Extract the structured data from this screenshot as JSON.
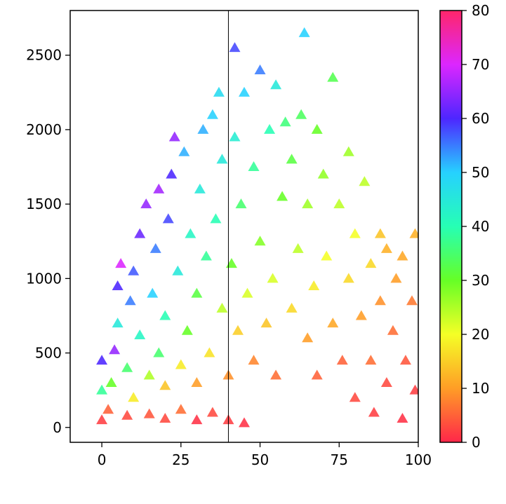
{
  "chart_data": {
    "type": "scatter",
    "marker": "triangle",
    "title": "",
    "xlabel": "",
    "ylabel": "",
    "xlim": [
      -10,
      100
    ],
    "ylim": [
      -100,
      2800
    ],
    "x_ticks": [
      0,
      25,
      50,
      75,
      100
    ],
    "x_tick_labels": [
      "0",
      "25",
      "50",
      "75",
      "100"
    ],
    "y_ticks": [
      0,
      500,
      1000,
      1500,
      2000,
      2500
    ],
    "y_tick_labels": [
      "0",
      "500",
      "1000",
      "1500",
      "2000",
      "2500"
    ],
    "vertical_line_x": 40,
    "colorbar": {
      "colormap": "gist_rainbow",
      "range": [
        0,
        80
      ],
      "ticks": [
        0,
        10,
        20,
        30,
        40,
        50,
        60,
        70,
        80
      ],
      "tick_labels": [
        "0",
        "10",
        "20",
        "30",
        "40",
        "50",
        "60",
        "70",
        "80"
      ]
    },
    "points": [
      {
        "x": 0,
        "y": 50,
        "c": 2
      },
      {
        "x": 0,
        "y": 250,
        "c": 38
      },
      {
        "x": 0,
        "y": 450,
        "c": 60
      },
      {
        "x": 2,
        "y": 120,
        "c": 5
      },
      {
        "x": 3,
        "y": 300,
        "c": 30
      },
      {
        "x": 4,
        "y": 520,
        "c": 65
      },
      {
        "x": 5,
        "y": 700,
        "c": 45
      },
      {
        "x": 5,
        "y": 950,
        "c": 60
      },
      {
        "x": 6,
        "y": 1100,
        "c": 70
      },
      {
        "x": 8,
        "y": 80,
        "c": 3
      },
      {
        "x": 8,
        "y": 400,
        "c": 35
      },
      {
        "x": 9,
        "y": 850,
        "c": 55
      },
      {
        "x": 10,
        "y": 1050,
        "c": 57
      },
      {
        "x": 10,
        "y": 200,
        "c": 18
      },
      {
        "x": 12,
        "y": 620,
        "c": 42
      },
      {
        "x": 12,
        "y": 1300,
        "c": 62
      },
      {
        "x": 14,
        "y": 1500,
        "c": 65
      },
      {
        "x": 15,
        "y": 90,
        "c": 4
      },
      {
        "x": 15,
        "y": 350,
        "c": 25
      },
      {
        "x": 16,
        "y": 900,
        "c": 50
      },
      {
        "x": 17,
        "y": 1200,
        "c": 55
      },
      {
        "x": 18,
        "y": 1600,
        "c": 66
      },
      {
        "x": 18,
        "y": 500,
        "c": 35
      },
      {
        "x": 20,
        "y": 60,
        "c": 3
      },
      {
        "x": 20,
        "y": 280,
        "c": 14
      },
      {
        "x": 20,
        "y": 750,
        "c": 40
      },
      {
        "x": 21,
        "y": 1400,
        "c": 58
      },
      {
        "x": 22,
        "y": 1700,
        "c": 60
      },
      {
        "x": 23,
        "y": 1950,
        "c": 65
      },
      {
        "x": 24,
        "y": 1050,
        "c": 45
      },
      {
        "x": 25,
        "y": 120,
        "c": 6
      },
      {
        "x": 25,
        "y": 420,
        "c": 18
      },
      {
        "x": 26,
        "y": 1850,
        "c": 52
      },
      {
        "x": 27,
        "y": 650,
        "c": 30
      },
      {
        "x": 28,
        "y": 1300,
        "c": 42
      },
      {
        "x": 30,
        "y": 50,
        "c": 1
      },
      {
        "x": 30,
        "y": 300,
        "c": 10
      },
      {
        "x": 30,
        "y": 900,
        "c": 32
      },
      {
        "x": 31,
        "y": 1600,
        "c": 45
      },
      {
        "x": 32,
        "y": 2000,
        "c": 52
      },
      {
        "x": 33,
        "y": 1150,
        "c": 38
      },
      {
        "x": 34,
        "y": 500,
        "c": 17
      },
      {
        "x": 35,
        "y": 100,
        "c": 3
      },
      {
        "x": 35,
        "y": 2100,
        "c": 50
      },
      {
        "x": 36,
        "y": 1400,
        "c": 40
      },
      {
        "x": 37,
        "y": 2250,
        "c": 48
      },
      {
        "x": 38,
        "y": 800,
        "c": 24
      },
      {
        "x": 38,
        "y": 1800,
        "c": 45
      },
      {
        "x": 40,
        "y": 50,
        "c": 2
      },
      {
        "x": 40,
        "y": 350,
        "c": 9
      },
      {
        "x": 41,
        "y": 1100,
        "c": 30
      },
      {
        "x": 42,
        "y": 1950,
        "c": 44
      },
      {
        "x": 42,
        "y": 2550,
        "c": 58
      },
      {
        "x": 43,
        "y": 650,
        "c": 15
      },
      {
        "x": 44,
        "y": 1500,
        "c": 35
      },
      {
        "x": 45,
        "y": 2250,
        "c": 50
      },
      {
        "x": 45,
        "y": 30,
        "c": 1
      },
      {
        "x": 46,
        "y": 900,
        "c": 22
      },
      {
        "x": 48,
        "y": 1750,
        "c": 38
      },
      {
        "x": 48,
        "y": 450,
        "c": 8
      },
      {
        "x": 50,
        "y": 1250,
        "c": 28
      },
      {
        "x": 50,
        "y": 2400,
        "c": 55
      },
      {
        "x": 52,
        "y": 700,
        "c": 14
      },
      {
        "x": 53,
        "y": 2000,
        "c": 40
      },
      {
        "x": 54,
        "y": 1000,
        "c": 22
      },
      {
        "x": 55,
        "y": 2300,
        "c": 45
      },
      {
        "x": 55,
        "y": 350,
        "c": 6
      },
      {
        "x": 57,
        "y": 1550,
        "c": 30
      },
      {
        "x": 58,
        "y": 2050,
        "c": 36
      },
      {
        "x": 60,
        "y": 800,
        "c": 16
      },
      {
        "x": 60,
        "y": 1800,
        "c": 32
      },
      {
        "x": 62,
        "y": 1200,
        "c": 24
      },
      {
        "x": 63,
        "y": 2100,
        "c": 34
      },
      {
        "x": 64,
        "y": 2650,
        "c": 50
      },
      {
        "x": 65,
        "y": 600,
        "c": 10
      },
      {
        "x": 65,
        "y": 1500,
        "c": 26
      },
      {
        "x": 67,
        "y": 950,
        "c": 18
      },
      {
        "x": 68,
        "y": 2000,
        "c": 30
      },
      {
        "x": 68,
        "y": 350,
        "c": 5
      },
      {
        "x": 70,
        "y": 1700,
        "c": 27
      },
      {
        "x": 71,
        "y": 1150,
        "c": 20
      },
      {
        "x": 73,
        "y": 2350,
        "c": 33
      },
      {
        "x": 73,
        "y": 700,
        "c": 11
      },
      {
        "x": 75,
        "y": 1500,
        "c": 24
      },
      {
        "x": 76,
        "y": 450,
        "c": 5
      },
      {
        "x": 78,
        "y": 1000,
        "c": 16
      },
      {
        "x": 78,
        "y": 1850,
        "c": 26
      },
      {
        "x": 80,
        "y": 1300,
        "c": 20
      },
      {
        "x": 80,
        "y": 200,
        "c": 3
      },
      {
        "x": 82,
        "y": 750,
        "c": 10
      },
      {
        "x": 83,
        "y": 1650,
        "c": 24
      },
      {
        "x": 85,
        "y": 1100,
        "c": 16
      },
      {
        "x": 85,
        "y": 450,
        "c": 6
      },
      {
        "x": 86,
        "y": 100,
        "c": 2
      },
      {
        "x": 88,
        "y": 1300,
        "c": 14
      },
      {
        "x": 88,
        "y": 850,
        "c": 9
      },
      {
        "x": 90,
        "y": 1200,
        "c": 12
      },
      {
        "x": 90,
        "y": 300,
        "c": 3
      },
      {
        "x": 92,
        "y": 650,
        "c": 6
      },
      {
        "x": 93,
        "y": 1000,
        "c": 10
      },
      {
        "x": 95,
        "y": 1150,
        "c": 11
      },
      {
        "x": 95,
        "y": 60,
        "c": 1
      },
      {
        "x": 96,
        "y": 450,
        "c": 4
      },
      {
        "x": 98,
        "y": 850,
        "c": 7
      },
      {
        "x": 99,
        "y": 1300,
        "c": 12
      },
      {
        "x": 99,
        "y": 250,
        "c": 2
      }
    ]
  }
}
